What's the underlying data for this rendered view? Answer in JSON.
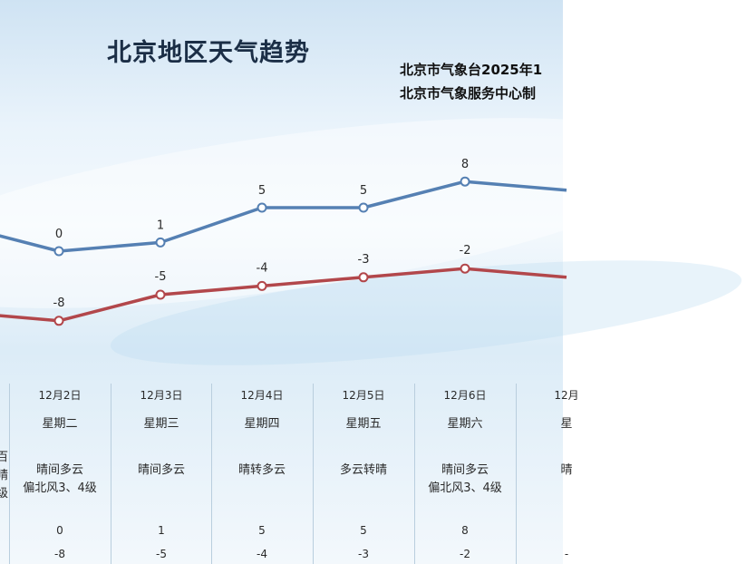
{
  "title": "北京地区天气趋势",
  "source_line1": "北京市气象台2025年1",
  "source_line2": "北京市气象服务中心制",
  "colors": {
    "high_line": "#5580b3",
    "low_line": "#b2474b"
  },
  "chart_data": {
    "type": "line",
    "categories": [
      "",
      "12月2日",
      "12月3日",
      "12月4日",
      "12月5日",
      "12月6日",
      "12"
    ],
    "series": [
      {
        "values": [
          3,
          0,
          1,
          5,
          5,
          8,
          7
        ]
      },
      {
        "values": [
          -7,
          -8,
          -5,
          -4,
          -3,
          -2,
          -3
        ]
      }
    ],
    "point_labels_high": [
      "",
      "0",
      "1",
      "5",
      "5",
      "8",
      ""
    ],
    "point_labels_low": [
      "",
      "-8",
      "-5",
      "-4",
      "-3",
      "-2",
      "-"
    ],
    "grid": false
  },
  "days": [
    {
      "date": "",
      "weekday": "",
      "weather": [
        "百",
        "晴",
        "级"
      ],
      "high": "",
      "low": ""
    },
    {
      "date": "12月2日",
      "weekday": "星期二",
      "weather": [
        "晴间多云",
        "偏北风3、4级"
      ],
      "high": "0",
      "low": "-8"
    },
    {
      "date": "12月3日",
      "weekday": "星期三",
      "weather": [
        "晴间多云"
      ],
      "high": "1",
      "low": "-5"
    },
    {
      "date": "12月4日",
      "weekday": "星期四",
      "weather": [
        "晴转多云"
      ],
      "high": "5",
      "low": "-4"
    },
    {
      "date": "12月5日",
      "weekday": "星期五",
      "weather": [
        "多云转晴"
      ],
      "high": "5",
      "low": "-3"
    },
    {
      "date": "12月6日",
      "weekday": "星期六",
      "weather": [
        "晴间多云",
        "偏北风3、4级"
      ],
      "high": "8",
      "low": "-2"
    },
    {
      "date": "12月",
      "weekday": "星",
      "weather": [
        "晴"
      ],
      "high": "",
      "low": "-"
    }
  ]
}
